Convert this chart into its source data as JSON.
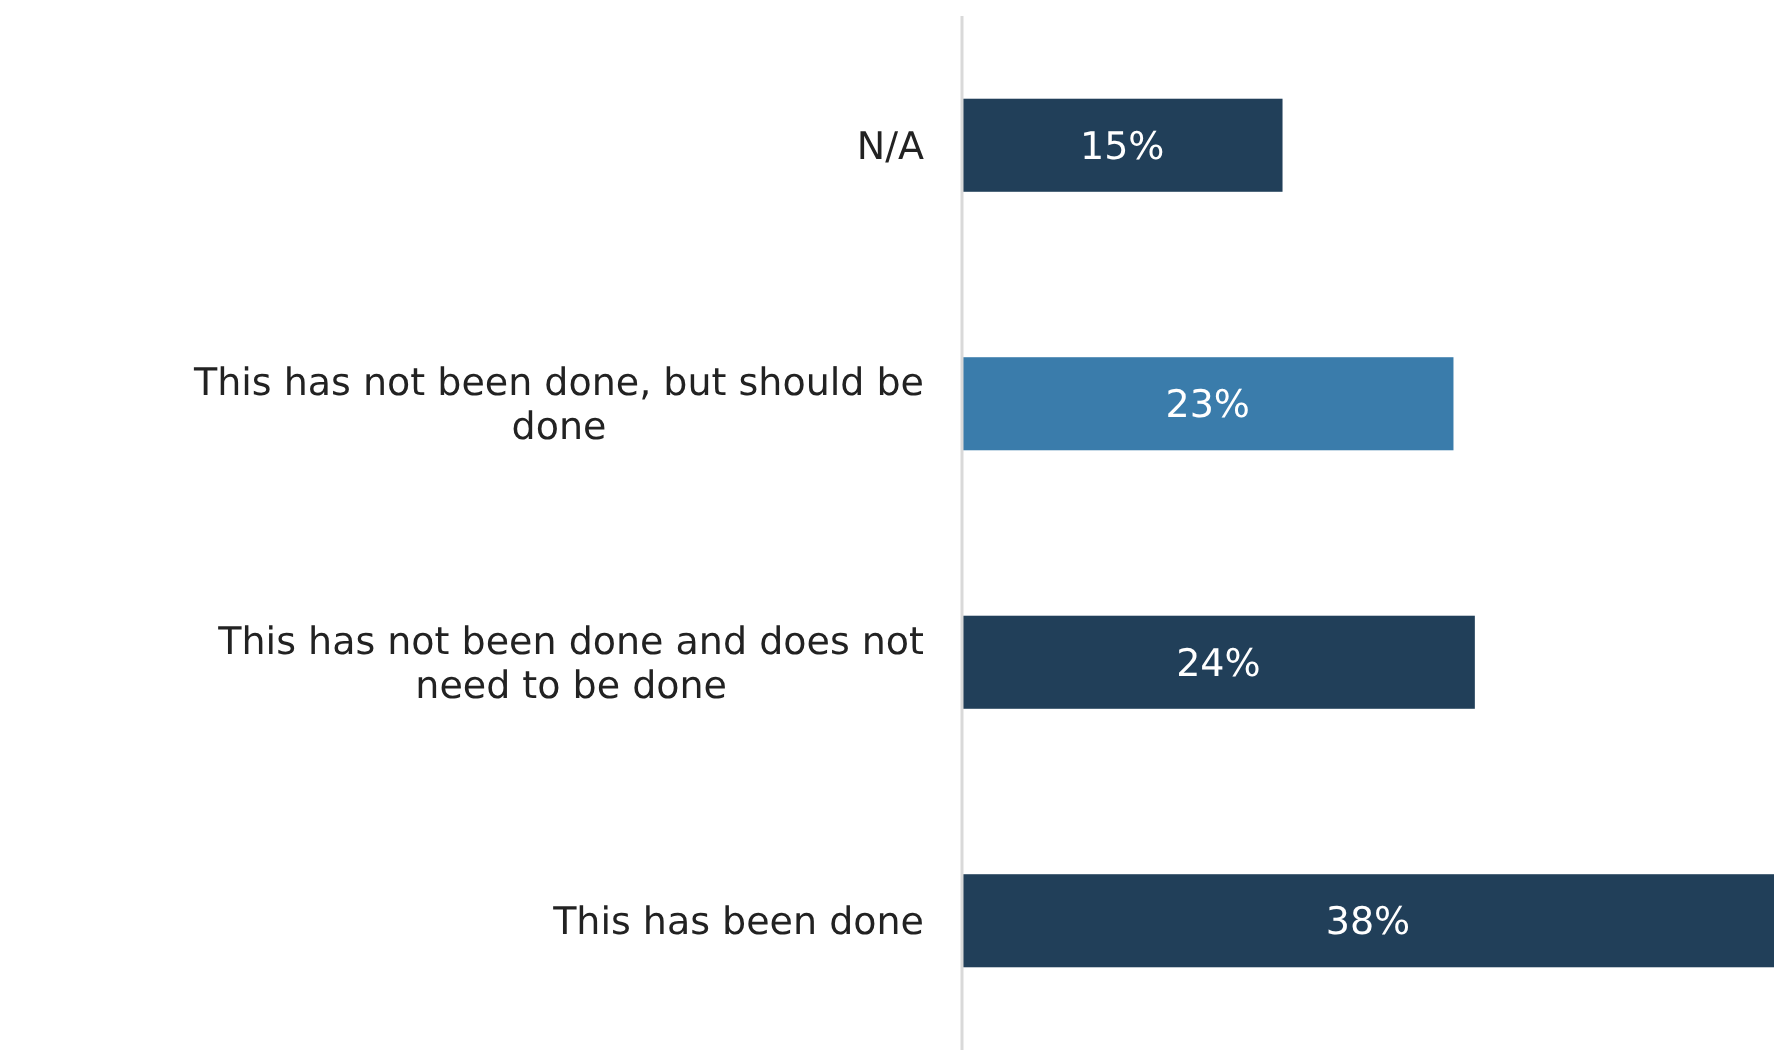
{
  "chart_data": {
    "type": "bar",
    "orientation": "horizontal",
    "categories": [
      "N/A",
      "This has not been done, but should be done",
      "This has not been done and does not need to be done",
      "This has been done"
    ],
    "values": [
      15,
      23,
      24,
      38
    ],
    "colors": [
      "#213f59",
      "#3a7cab",
      "#213f59",
      "#213f59"
    ],
    "value_labels": [
      "15%",
      "23%",
      "24%",
      "38%"
    ]
  }
}
